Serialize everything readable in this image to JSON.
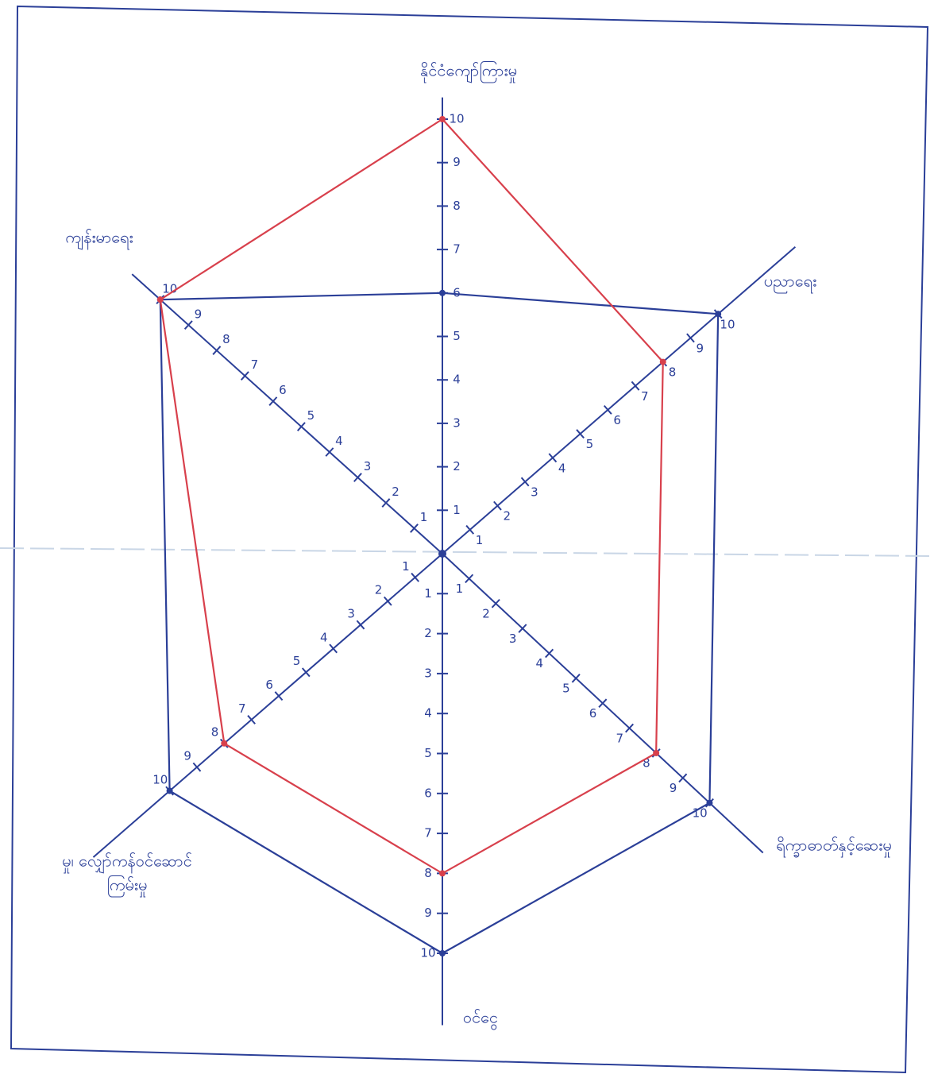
{
  "chart_data": {
    "type": "radar",
    "axes": [
      [
        "နိုင်ငံကျော်ကြားမှု"
      ],
      [
        "ပညာရေး"
      ],
      [
        "ရိက္ခာဓာတ်နှင့်ဆေးမှု"
      ],
      [
        "ဝင်ငွေ"
      ],
      [
        "မှု၊ လျှော်ကန်ဝင်ဆောင်",
        "ကြမ်းမှု"
      ],
      [
        "ကျန်းမာရေး"
      ]
    ],
    "rlim": [
      0,
      10
    ],
    "rticks": [
      1,
      2,
      3,
      4,
      5,
      6,
      7,
      8,
      9,
      10
    ],
    "series": [
      {
        "color": "#2b3f98",
        "values": [
          6,
          10,
          10,
          10,
          10,
          10
        ]
      },
      {
        "color": "#d8404c",
        "values": [
          10,
          8,
          8,
          8,
          8,
          10
        ]
      }
    ]
  }
}
